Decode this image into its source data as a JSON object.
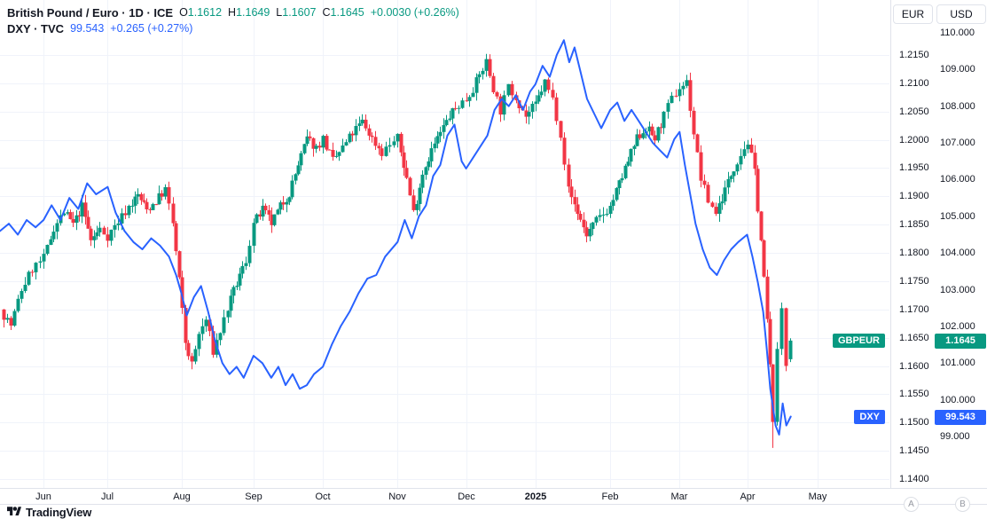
{
  "header": {
    "symbol_title": "British Pound / Euro · 1D · ICE",
    "ohlc": {
      "o_label": "O",
      "o": "1.1612",
      "h_label": "H",
      "h": "1.1649",
      "l_label": "L",
      "l": "1.1607",
      "c_label": "C",
      "c": "1.1645",
      "change": "+0.0030 (+0.26%)"
    },
    "dxy_title": "DXY · TVC",
    "dxy_value": "99.543",
    "dxy_change": "+0.265 (+0.27%)"
  },
  "panel": {
    "eur_button": "EUR",
    "usd_button": "USD"
  },
  "badges": {
    "gbpeur_ticker": "GBPEUR",
    "gbpeur_price": "1.1645",
    "gbpeur_value": 1.1645,
    "dxy_ticker": "DXY",
    "dxy_price": "99.543",
    "dxy_value": 99.543
  },
  "footer": {
    "logo_text": "TradingView",
    "button_a": "A",
    "button_b": "B"
  },
  "colors": {
    "up": "#089981",
    "down": "#f23645",
    "dxy_line": "#2962ff",
    "accent_teal": "#089981",
    "accent_blue": "#2962ff",
    "grid": "#f0f3fa",
    "border": "#e0e3eb",
    "text": "#131722",
    "muted": "#787b86"
  },
  "chart_data": {
    "type": "candlestick+line",
    "title": "British Pound / Euro (GBPEUR, 1D, ICE) with US Dollar Index (DXY, TVC) overlay",
    "legend_position": "top-left",
    "grid": true,
    "x_axis": {
      "ticks": [
        {
          "label": "Jun",
          "x": 0.049
        },
        {
          "label": "Jul",
          "x": 0.121
        },
        {
          "label": "Aug",
          "x": 0.204
        },
        {
          "label": "Sep",
          "x": 0.285
        },
        {
          "label": "Oct",
          "x": 0.363
        },
        {
          "label": "Nov",
          "x": 0.447
        },
        {
          "label": "Dec",
          "x": 0.524
        },
        {
          "label": "2025",
          "x": 0.602,
          "bold": true
        },
        {
          "label": "Feb",
          "x": 0.686
        },
        {
          "label": "Mar",
          "x": 0.764
        },
        {
          "label": "Apr",
          "x": 0.84
        },
        {
          "label": "May",
          "x": 0.919
        }
      ]
    },
    "y_axis_eur": {
      "unit": "EUR",
      "ylim": [
        1.14,
        1.215
      ],
      "ticks": [
        "1.2150",
        "1.2100",
        "1.2050",
        "1.2000",
        "1.1950",
        "1.1900",
        "1.1850",
        "1.1800",
        "1.1750",
        "1.1700",
        "1.1650",
        "1.1600",
        "1.1550",
        "1.1500",
        "1.1450",
        "1.1400"
      ]
    },
    "y_axis_usd": {
      "unit": "USD",
      "ylim": [
        99,
        110
      ],
      "ticks": [
        "110.000",
        "109.000",
        "108.000",
        "107.000",
        "106.000",
        "105.000",
        "104.000",
        "103.000",
        "102.000",
        "101.000",
        "100.000",
        "99.000"
      ]
    },
    "series": [
      {
        "name": "GBPEUR",
        "type": "candlestick",
        "last_candle": {
          "o": 1.1612,
          "h": 1.1649,
          "l": 1.1607,
          "c": 1.1645
        },
        "spike_high": {
          "x": 0.546,
          "high": 1.2152
        },
        "spike_low": {
          "x": 0.868,
          "low": 1.1455
        },
        "anchors": [
          [
            0.0,
            1.17
          ],
          [
            0.012,
            1.1672
          ],
          [
            0.024,
            1.1735
          ],
          [
            0.036,
            1.1772
          ],
          [
            0.049,
            1.179
          ],
          [
            0.06,
            1.1845
          ],
          [
            0.072,
            1.1872
          ],
          [
            0.082,
            1.185
          ],
          [
            0.092,
            1.1882
          ],
          [
            0.102,
            1.1822
          ],
          [
            0.112,
            1.1842
          ],
          [
            0.121,
            1.183
          ],
          [
            0.133,
            1.1856
          ],
          [
            0.145,
            1.1882
          ],
          [
            0.155,
            1.1902
          ],
          [
            0.165,
            1.1876
          ],
          [
            0.175,
            1.1892
          ],
          [
            0.185,
            1.1912
          ],
          [
            0.194,
            1.1852
          ],
          [
            0.201,
            1.1752
          ],
          [
            0.208,
            1.1642
          ],
          [
            0.215,
            1.1602
          ],
          [
            0.223,
            1.1656
          ],
          [
            0.231,
            1.1682
          ],
          [
            0.239,
            1.1626
          ],
          [
            0.247,
            1.1662
          ],
          [
            0.256,
            1.1702
          ],
          [
            0.266,
            1.1746
          ],
          [
            0.276,
            1.1786
          ],
          [
            0.285,
            1.1852
          ],
          [
            0.295,
            1.1876
          ],
          [
            0.305,
            1.1852
          ],
          [
            0.315,
            1.1882
          ],
          [
            0.325,
            1.1906
          ],
          [
            0.335,
            1.1956
          ],
          [
            0.345,
            1.2002
          ],
          [
            0.355,
            1.1986
          ],
          [
            0.363,
            1.2002
          ],
          [
            0.374,
            1.1962
          ],
          [
            0.385,
            1.1986
          ],
          [
            0.396,
            1.2012
          ],
          [
            0.407,
            1.2032
          ],
          [
            0.418,
            1.2002
          ],
          [
            0.429,
            1.1978
          ],
          [
            0.438,
            1.1992
          ],
          [
            0.447,
            1.2002
          ],
          [
            0.457,
            1.1932
          ],
          [
            0.465,
            1.1872
          ],
          [
            0.475,
            1.1942
          ],
          [
            0.485,
            1.1982
          ],
          [
            0.495,
            1.2012
          ],
          [
            0.505,
            1.2042
          ],
          [
            0.515,
            1.2062
          ],
          [
            0.524,
            1.2072
          ],
          [
            0.535,
            1.2102
          ],
          [
            0.546,
            1.2138
          ],
          [
            0.554,
            1.2092
          ],
          [
            0.562,
            1.2052
          ],
          [
            0.571,
            1.2092
          ],
          [
            0.58,
            1.2076
          ],
          [
            0.591,
            1.2042
          ],
          [
            0.602,
            1.2062
          ],
          [
            0.612,
            1.2102
          ],
          [
            0.621,
            1.2072
          ],
          [
            0.63,
            1.2012
          ],
          [
            0.639,
            1.1912
          ],
          [
            0.649,
            1.1872
          ],
          [
            0.659,
            1.1832
          ],
          [
            0.67,
            1.1856
          ],
          [
            0.686,
            1.1882
          ],
          [
            0.696,
            1.1922
          ],
          [
            0.706,
            1.1962
          ],
          [
            0.716,
            1.2002
          ],
          [
            0.726,
            1.2022
          ],
          [
            0.736,
            1.2002
          ],
          [
            0.746,
            1.2042
          ],
          [
            0.755,
            1.2072
          ],
          [
            0.764,
            1.2092
          ],
          [
            0.772,
            1.2102
          ],
          [
            0.78,
            1.2012
          ],
          [
            0.788,
            1.1932
          ],
          [
            0.796,
            1.1892
          ],
          [
            0.805,
            1.1872
          ],
          [
            0.815,
            1.1912
          ],
          [
            0.825,
            1.1952
          ],
          [
            0.833,
            1.1976
          ],
          [
            0.84,
            1.1996
          ],
          [
            0.848,
            1.1942
          ],
          [
            0.855,
            1.1822
          ],
          [
            0.862,
            1.1682
          ],
          [
            0.868,
            1.151
          ],
          [
            0.873,
            1.1622
          ],
          [
            0.878,
            1.1702
          ],
          [
            0.883,
            1.1602
          ],
          [
            0.888,
            1.1645
          ]
        ]
      },
      {
        "name": "DXY",
        "type": "line",
        "points": [
          [
            0.0,
            104.6
          ],
          [
            0.01,
            104.8
          ],
          [
            0.02,
            104.5
          ],
          [
            0.03,
            104.9
          ],
          [
            0.04,
            104.7
          ],
          [
            0.049,
            104.9
          ],
          [
            0.058,
            105.3
          ],
          [
            0.068,
            104.9
          ],
          [
            0.078,
            105.5
          ],
          [
            0.088,
            105.2
          ],
          [
            0.098,
            105.9
          ],
          [
            0.108,
            105.6
          ],
          [
            0.121,
            105.8
          ],
          [
            0.13,
            105.1
          ],
          [
            0.14,
            104.6
          ],
          [
            0.15,
            104.3
          ],
          [
            0.16,
            104.1
          ],
          [
            0.17,
            104.4
          ],
          [
            0.18,
            104.2
          ],
          [
            0.19,
            103.9
          ],
          [
            0.198,
            103.4
          ],
          [
            0.204,
            102.9
          ],
          [
            0.21,
            102.3
          ],
          [
            0.218,
            102.8
          ],
          [
            0.226,
            103.1
          ],
          [
            0.234,
            102.4
          ],
          [
            0.242,
            101.6
          ],
          [
            0.25,
            101.0
          ],
          [
            0.258,
            100.7
          ],
          [
            0.266,
            100.9
          ],
          [
            0.274,
            100.6
          ],
          [
            0.285,
            101.2
          ],
          [
            0.295,
            101.0
          ],
          [
            0.305,
            100.6
          ],
          [
            0.313,
            100.9
          ],
          [
            0.321,
            100.4
          ],
          [
            0.329,
            100.7
          ],
          [
            0.337,
            100.3
          ],
          [
            0.345,
            100.4
          ],
          [
            0.353,
            100.7
          ],
          [
            0.363,
            100.9
          ],
          [
            0.373,
            101.5
          ],
          [
            0.383,
            102.0
          ],
          [
            0.393,
            102.4
          ],
          [
            0.403,
            102.9
          ],
          [
            0.413,
            103.3
          ],
          [
            0.423,
            103.4
          ],
          [
            0.433,
            103.9
          ],
          [
            0.447,
            104.3
          ],
          [
            0.455,
            104.9
          ],
          [
            0.463,
            104.4
          ],
          [
            0.471,
            105.0
          ],
          [
            0.479,
            105.3
          ],
          [
            0.487,
            106.1
          ],
          [
            0.495,
            106.4
          ],
          [
            0.503,
            107.2
          ],
          [
            0.511,
            107.5
          ],
          [
            0.519,
            106.5
          ],
          [
            0.524,
            106.3
          ],
          [
            0.532,
            106.6
          ],
          [
            0.54,
            106.9
          ],
          [
            0.548,
            107.2
          ],
          [
            0.556,
            107.9
          ],
          [
            0.564,
            108.2
          ],
          [
            0.572,
            108.0
          ],
          [
            0.58,
            108.3
          ],
          [
            0.588,
            107.9
          ],
          [
            0.596,
            108.4
          ],
          [
            0.602,
            108.6
          ],
          [
            0.61,
            109.1
          ],
          [
            0.618,
            108.8
          ],
          [
            0.626,
            109.4
          ],
          [
            0.634,
            109.8
          ],
          [
            0.64,
            109.2
          ],
          [
            0.646,
            109.6
          ],
          [
            0.652,
            109.0
          ],
          [
            0.66,
            108.2
          ],
          [
            0.668,
            107.8
          ],
          [
            0.676,
            107.4
          ],
          [
            0.686,
            107.9
          ],
          [
            0.694,
            108.1
          ],
          [
            0.702,
            107.6
          ],
          [
            0.71,
            107.9
          ],
          [
            0.718,
            107.6
          ],
          [
            0.726,
            107.3
          ],
          [
            0.734,
            107.0
          ],
          [
            0.742,
            106.8
          ],
          [
            0.75,
            106.6
          ],
          [
            0.758,
            107.1
          ],
          [
            0.764,
            107.3
          ],
          [
            0.77,
            106.4
          ],
          [
            0.776,
            105.6
          ],
          [
            0.782,
            104.8
          ],
          [
            0.79,
            104.1
          ],
          [
            0.798,
            103.6
          ],
          [
            0.806,
            103.4
          ],
          [
            0.814,
            103.8
          ],
          [
            0.822,
            104.1
          ],
          [
            0.83,
            104.3
          ],
          [
            0.84,
            104.5
          ],
          [
            0.846,
            103.9
          ],
          [
            0.852,
            103.2
          ],
          [
            0.858,
            102.4
          ],
          [
            0.862,
            101.4
          ],
          [
            0.866,
            100.3
          ],
          [
            0.869,
            99.8
          ],
          [
            0.872,
            99.3
          ],
          [
            0.876,
            99.05
          ],
          [
            0.88,
            99.9
          ],
          [
            0.884,
            99.3
          ],
          [
            0.889,
            99.543
          ]
        ]
      }
    ]
  }
}
